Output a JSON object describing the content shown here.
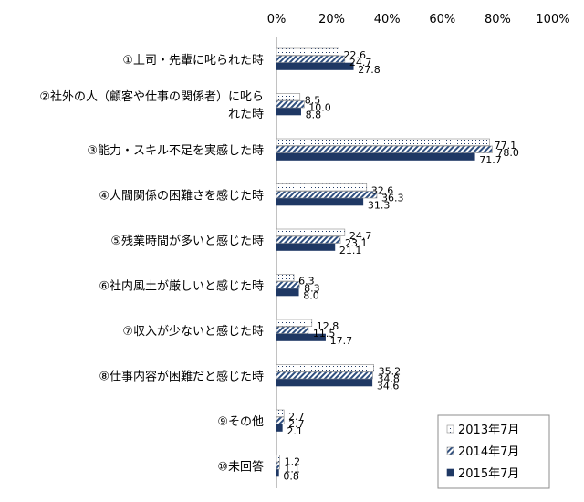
{
  "chart_data": {
    "type": "bar",
    "orientation": "horizontal",
    "categories": [
      "①上司・先輩に叱られた時",
      "②社外の人（顧客や仕事の関係者）に叱られた時",
      "③能力・スキル不足を実感した時",
      "④人間関係の困難さを感じた時",
      "⑤残業時間が多いと感じた時",
      "⑥社内風土が厳しいと感じた時",
      "⑦収入が少ないと感じた時",
      "⑧仕事内容が困難だと感じた時",
      "⑨その他",
      "⑩未回答"
    ],
    "category_lines": [
      [
        "①上司・先輩に叱られた時"
      ],
      [
        "②社外の人（顧客や仕事の関係者）に叱ら",
        "れた時"
      ],
      [
        "③能力・スキル不足を実感した時"
      ],
      [
        "④人間関係の困難さを感じた時"
      ],
      [
        "⑤残業時間が多いと感じた時"
      ],
      [
        "⑥社内風土が厳しいと感じた時"
      ],
      [
        "⑦収入が少ないと感じた時"
      ],
      [
        "⑧仕事内容が困難だと感じた時"
      ],
      [
        "⑨その他"
      ],
      [
        "⑩未回答"
      ]
    ],
    "series": [
      {
        "name": "2013年7月",
        "values": [
          22.6,
          8.5,
          77.1,
          32.6,
          24.7,
          6.3,
          12.8,
          35.2,
          2.7,
          1.2
        ],
        "fill": "dots"
      },
      {
        "name": "2014年7月",
        "values": [
          24.7,
          10.0,
          78.0,
          36.3,
          23.1,
          8.3,
          11.5,
          34.8,
          2.7,
          1.1
        ],
        "fill": "diagonal-stripes"
      },
      {
        "name": "2015年7月",
        "values": [
          27.8,
          8.8,
          71.7,
          31.3,
          21.1,
          8.0,
          17.7,
          34.6,
          2.1,
          0.8
        ],
        "fill": "solid"
      }
    ],
    "value_labels": [
      [
        "22.6",
        "8.5",
        "77.1",
        "32.6",
        "24.7",
        "6.3",
        "12.8",
        "35.2",
        "2.7",
        "1.2"
      ],
      [
        "24.7",
        "10.0",
        "78.0",
        "36.3",
        "23.1",
        "8.3",
        "11.5",
        "34.8",
        "2.7",
        "1.1"
      ],
      [
        "27.8",
        "8.8",
        "71.7",
        "31.3",
        "21.1",
        "8.0",
        "17.7",
        "34.6",
        "2.1",
        "0.8"
      ]
    ],
    "xlim": [
      0,
      100
    ],
    "xticks": [
      0,
      20,
      40,
      60,
      80,
      100
    ],
    "xtick_labels": [
      "0%",
      "20%",
      "40%",
      "60%",
      "80%",
      "100%"
    ],
    "axis_position": "top",
    "grid": false,
    "legend_position": "bottom-right",
    "colors": {
      "dark": "#1f3864",
      "stripe": "#2f4f7f",
      "border": "#8a8a8a"
    }
  }
}
